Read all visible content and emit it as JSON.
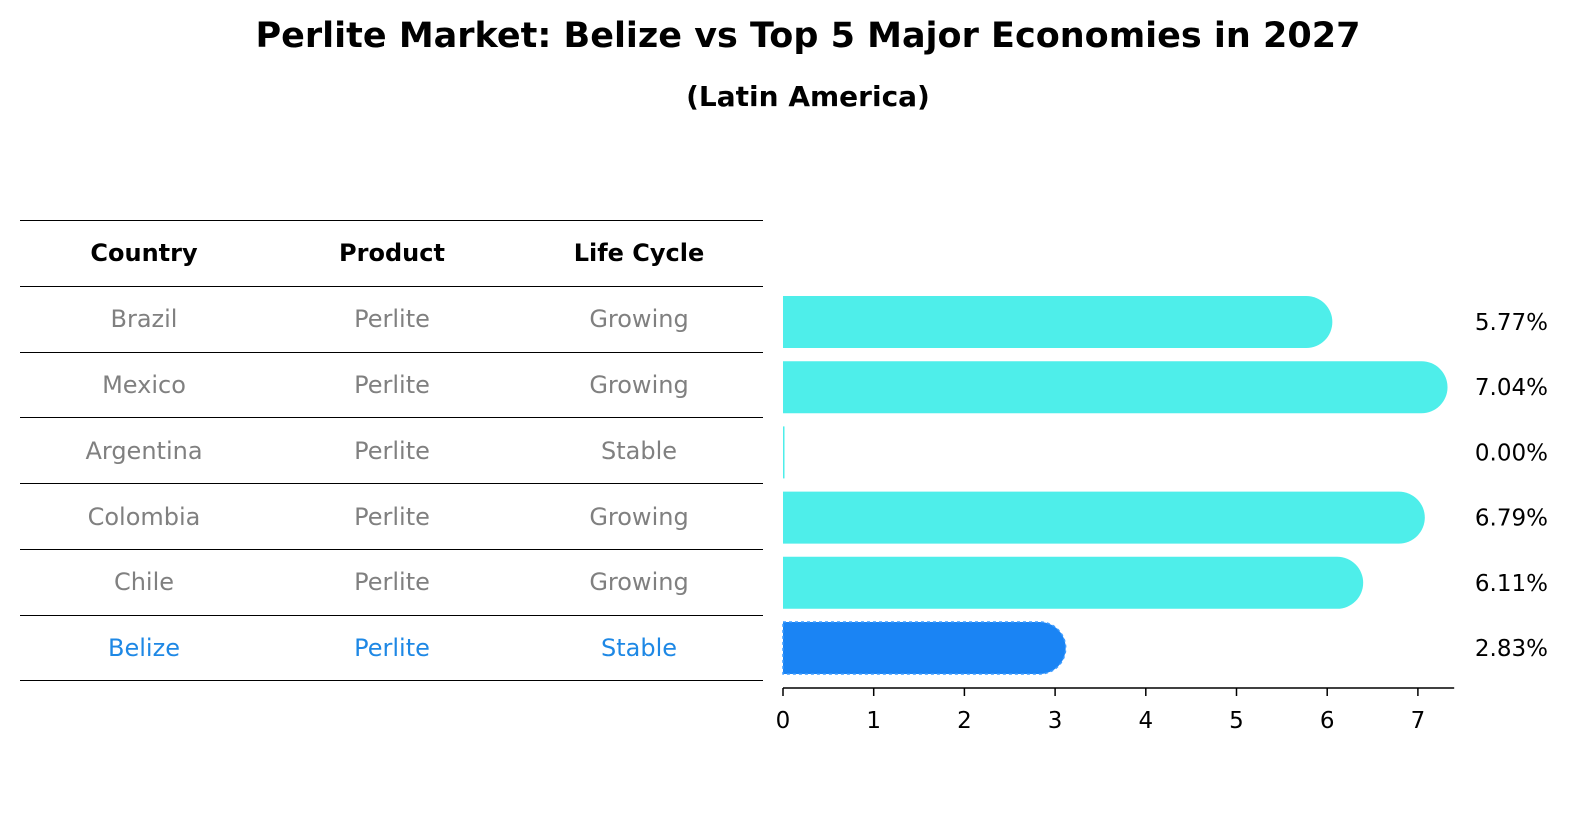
{
  "chart_data": {
    "type": "bar",
    "orientation": "horizontal",
    "title": "Perlite Market: Belize vs Top 5 Major Economies in 2027",
    "subtitle": "(Latin America)",
    "table_headers": [
      "Country",
      "Product",
      "Life Cycle"
    ],
    "rows": [
      {
        "country": "Brazil",
        "product": "Perlite",
        "life_cycle": "Growing",
        "value": 5.77,
        "label": "5.77%"
      },
      {
        "country": "Mexico",
        "product": "Perlite",
        "life_cycle": "Growing",
        "value": 7.04,
        "label": "7.04%"
      },
      {
        "country": "Argentina",
        "product": "Perlite",
        "life_cycle": "Stable",
        "value": 0.0,
        "label": "0.00%"
      },
      {
        "country": "Colombia",
        "product": "Perlite",
        "life_cycle": "Growing",
        "value": 6.79,
        "label": "6.79%"
      },
      {
        "country": "Chile",
        "product": "Perlite",
        "life_cycle": "Growing",
        "value": 6.11,
        "label": "6.11%"
      },
      {
        "country": "Belize",
        "product": "Perlite",
        "life_cycle": "Stable",
        "value": 2.83,
        "label": "2.83%",
        "highlight": true
      }
    ],
    "xticks": [
      "0",
      "1",
      "2",
      "3",
      "4",
      "5",
      "6",
      "7"
    ],
    "xlim": [
      0,
      7.4
    ],
    "colors": {
      "bar": "#4eeeea",
      "highlight_bar": "#1a84f4",
      "highlight_text": "#1e88e5",
      "muted_text": "#808080"
    }
  }
}
